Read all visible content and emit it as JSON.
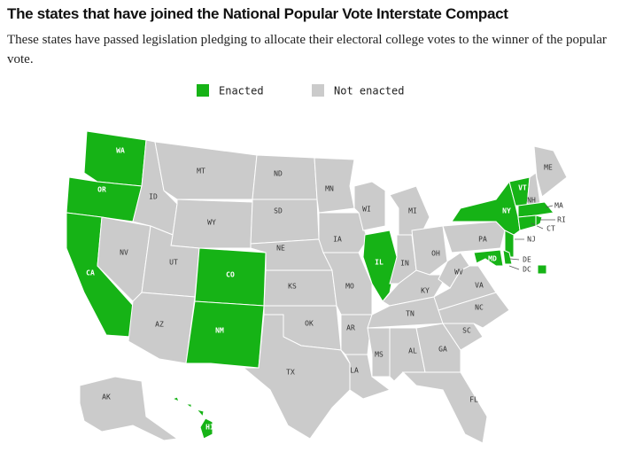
{
  "header": {
    "title": "The states that have joined the National Popular Vote Interstate Compact",
    "subtitle": "These states have passed legislation pledging to allocate their electoral college votes to the winner of the popular vote."
  },
  "legend": [
    {
      "label": "Enacted",
      "color": "#16b316"
    },
    {
      "label": "Not enacted",
      "color": "#cbcbcb"
    }
  ],
  "states": [
    {
      "abbr": "WA",
      "enacted": true
    },
    {
      "abbr": "OR",
      "enacted": true
    },
    {
      "abbr": "CA",
      "enacted": true
    },
    {
      "abbr": "NV",
      "enacted": false
    },
    {
      "abbr": "ID",
      "enacted": false
    },
    {
      "abbr": "MT",
      "enacted": false
    },
    {
      "abbr": "WY",
      "enacted": false
    },
    {
      "abbr": "UT",
      "enacted": false
    },
    {
      "abbr": "AZ",
      "enacted": false
    },
    {
      "abbr": "CO",
      "enacted": true
    },
    {
      "abbr": "NM",
      "enacted": true
    },
    {
      "abbr": "ND",
      "enacted": false
    },
    {
      "abbr": "SD",
      "enacted": false
    },
    {
      "abbr": "NE",
      "enacted": false
    },
    {
      "abbr": "KS",
      "enacted": false
    },
    {
      "abbr": "OK",
      "enacted": false
    },
    {
      "abbr": "TX",
      "enacted": false
    },
    {
      "abbr": "MN",
      "enacted": false
    },
    {
      "abbr": "IA",
      "enacted": false
    },
    {
      "abbr": "MO",
      "enacted": false
    },
    {
      "abbr": "AR",
      "enacted": false
    },
    {
      "abbr": "LA",
      "enacted": false
    },
    {
      "abbr": "WI",
      "enacted": false
    },
    {
      "abbr": "MI",
      "enacted": false
    },
    {
      "abbr": "IL",
      "enacted": true
    },
    {
      "abbr": "IN",
      "enacted": false
    },
    {
      "abbr": "OH",
      "enacted": false
    },
    {
      "abbr": "KY",
      "enacted": false
    },
    {
      "abbr": "TN",
      "enacted": false
    },
    {
      "abbr": "MS",
      "enacted": false
    },
    {
      "abbr": "AL",
      "enacted": false
    },
    {
      "abbr": "GA",
      "enacted": false
    },
    {
      "abbr": "FL",
      "enacted": false
    },
    {
      "abbr": "SC",
      "enacted": false
    },
    {
      "abbr": "NC",
      "enacted": false
    },
    {
      "abbr": "VA",
      "enacted": false
    },
    {
      "abbr": "WV",
      "enacted": false
    },
    {
      "abbr": "PA",
      "enacted": false
    },
    {
      "abbr": "NY",
      "enacted": true
    },
    {
      "abbr": "NJ",
      "enacted": true
    },
    {
      "abbr": "VT",
      "enacted": true
    },
    {
      "abbr": "NH",
      "enacted": false
    },
    {
      "abbr": "ME",
      "enacted": false
    },
    {
      "abbr": "MA",
      "enacted": true
    },
    {
      "abbr": "CT",
      "enacted": true
    },
    {
      "abbr": "RI",
      "enacted": true
    },
    {
      "abbr": "MD",
      "enacted": true
    },
    {
      "abbr": "DE",
      "enacted": true
    },
    {
      "abbr": "DC",
      "enacted": true
    },
    {
      "abbr": "AK",
      "enacted": false
    },
    {
      "abbr": "HI",
      "enacted": true
    }
  ]
}
